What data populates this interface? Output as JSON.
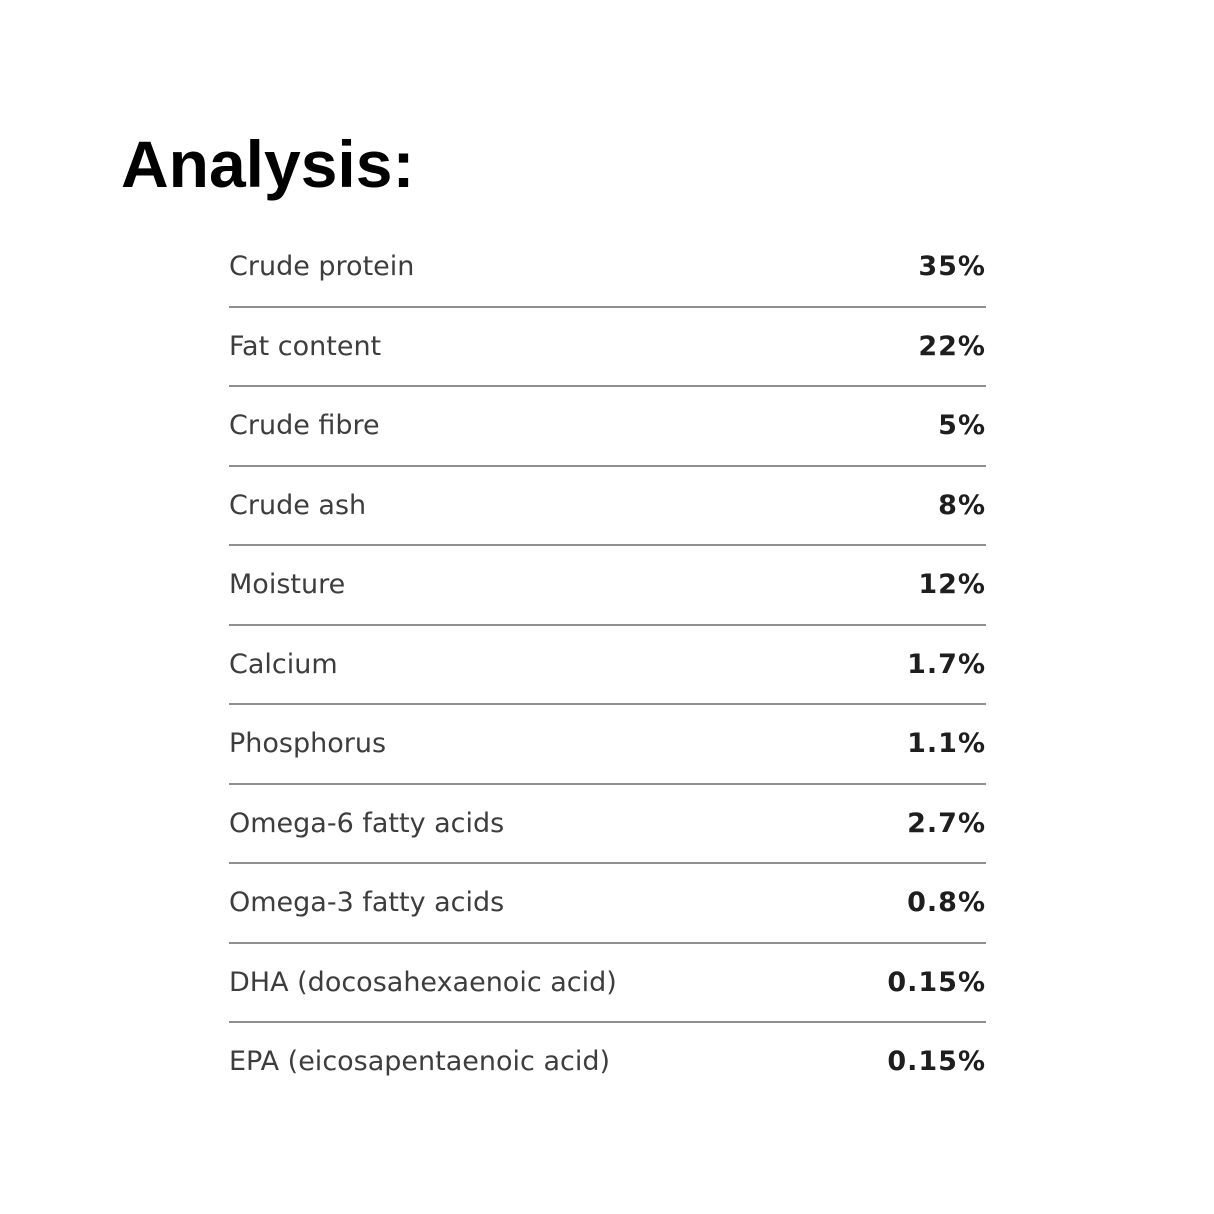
{
  "page": {
    "title": "Analysis:"
  },
  "analysis": {
    "rows": [
      {
        "label": "Crude protein",
        "value": "35%"
      },
      {
        "label": "Fat content",
        "value": "22%"
      },
      {
        "label": "Crude fibre",
        "value": "5%"
      },
      {
        "label": "Crude ash",
        "value": "8%"
      },
      {
        "label": "Moisture",
        "value": "12%"
      },
      {
        "label": "Calcium",
        "value": "1.7%"
      },
      {
        "label": "Phosphorus",
        "value": "1.1%"
      },
      {
        "label": "Omega-6 fatty acids",
        "value": "2.7%"
      },
      {
        "label": "Omega-3 fatty acids",
        "value": "0.8%"
      },
      {
        "label": "DHA (docosahexaenoic acid)",
        "value": "0.15%"
      },
      {
        "label": "EPA (eicosapentaenoic acid)",
        "value": "0.15%"
      }
    ]
  }
}
